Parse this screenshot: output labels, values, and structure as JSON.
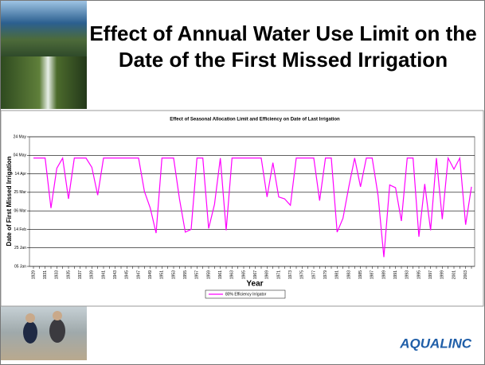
{
  "slide": {
    "title": "Effect of Annual Water Use Limit on the Date of the First Missed Irrigation",
    "logo": "AQUALINC"
  },
  "chart_data": {
    "type": "line",
    "title": "Effect of Seasonal Allocation Limit and Efficiency on Date of Last Irrigation",
    "x_label": "Year",
    "y_label": "Date of First Missed Irrigation",
    "categories": [
      "1929",
      null,
      "1931",
      null,
      "1933",
      null,
      "1935",
      null,
      "1937",
      null,
      "1939",
      null,
      "1941",
      null,
      "1943",
      null,
      "1945",
      null,
      "1947",
      null,
      "1949",
      null,
      "1951",
      null,
      "1953",
      null,
      "1955",
      null,
      "1957",
      null,
      "1959",
      null,
      "1961",
      null,
      "1963",
      null,
      "1965",
      null,
      "1967",
      null,
      "1969",
      null,
      "1971",
      null,
      "1973",
      null,
      "1975",
      null,
      "1977",
      null,
      "1979",
      null,
      "1981",
      null,
      "1983",
      null,
      "1985",
      null,
      "1987",
      null,
      "1989",
      null,
      "1991",
      null,
      "1993",
      null,
      "1995",
      null,
      "1997",
      null,
      "1999",
      null,
      "2001",
      null,
      "2003",
      null
    ],
    "series": [
      {
        "name": "80% Efficiency Irrigator",
        "color": "#ff00ff",
        "values": [
          122,
          122,
          122,
          68,
          111,
          122,
          78,
          122,
          122,
          122,
          112,
          82,
          122,
          122,
          122,
          122,
          122,
          122,
          122,
          86,
          68,
          41,
          122,
          122,
          122,
          78,
          42,
          45,
          122,
          122,
          46,
          72,
          122,
          44,
          122,
          122,
          122,
          122,
          122,
          122,
          80,
          117,
          80,
          78,
          71,
          122,
          122,
          122,
          122,
          76,
          122,
          122,
          42,
          57,
          91,
          122,
          91,
          122,
          122,
          82,
          15,
          93,
          90,
          54,
          122,
          122,
          37,
          94,
          44,
          122,
          56,
          122,
          110,
          122,
          50,
          91
        ]
      }
    ],
    "ylim": [
      5,
      145
    ],
    "yticks": [
      {
        "value": 5,
        "label": "05 Jan"
      },
      {
        "value": 25,
        "label": "25 Jan"
      },
      {
        "value": 45,
        "label": "14 Feb"
      },
      {
        "value": 65,
        "label": "06 Mar"
      },
      {
        "value": 85,
        "label": "25 Mar"
      },
      {
        "value": 105,
        "label": "14 Apr"
      },
      {
        "value": 125,
        "label": "04 May"
      },
      {
        "value": 145,
        "label": "24 May"
      }
    ],
    "grid": true
  }
}
